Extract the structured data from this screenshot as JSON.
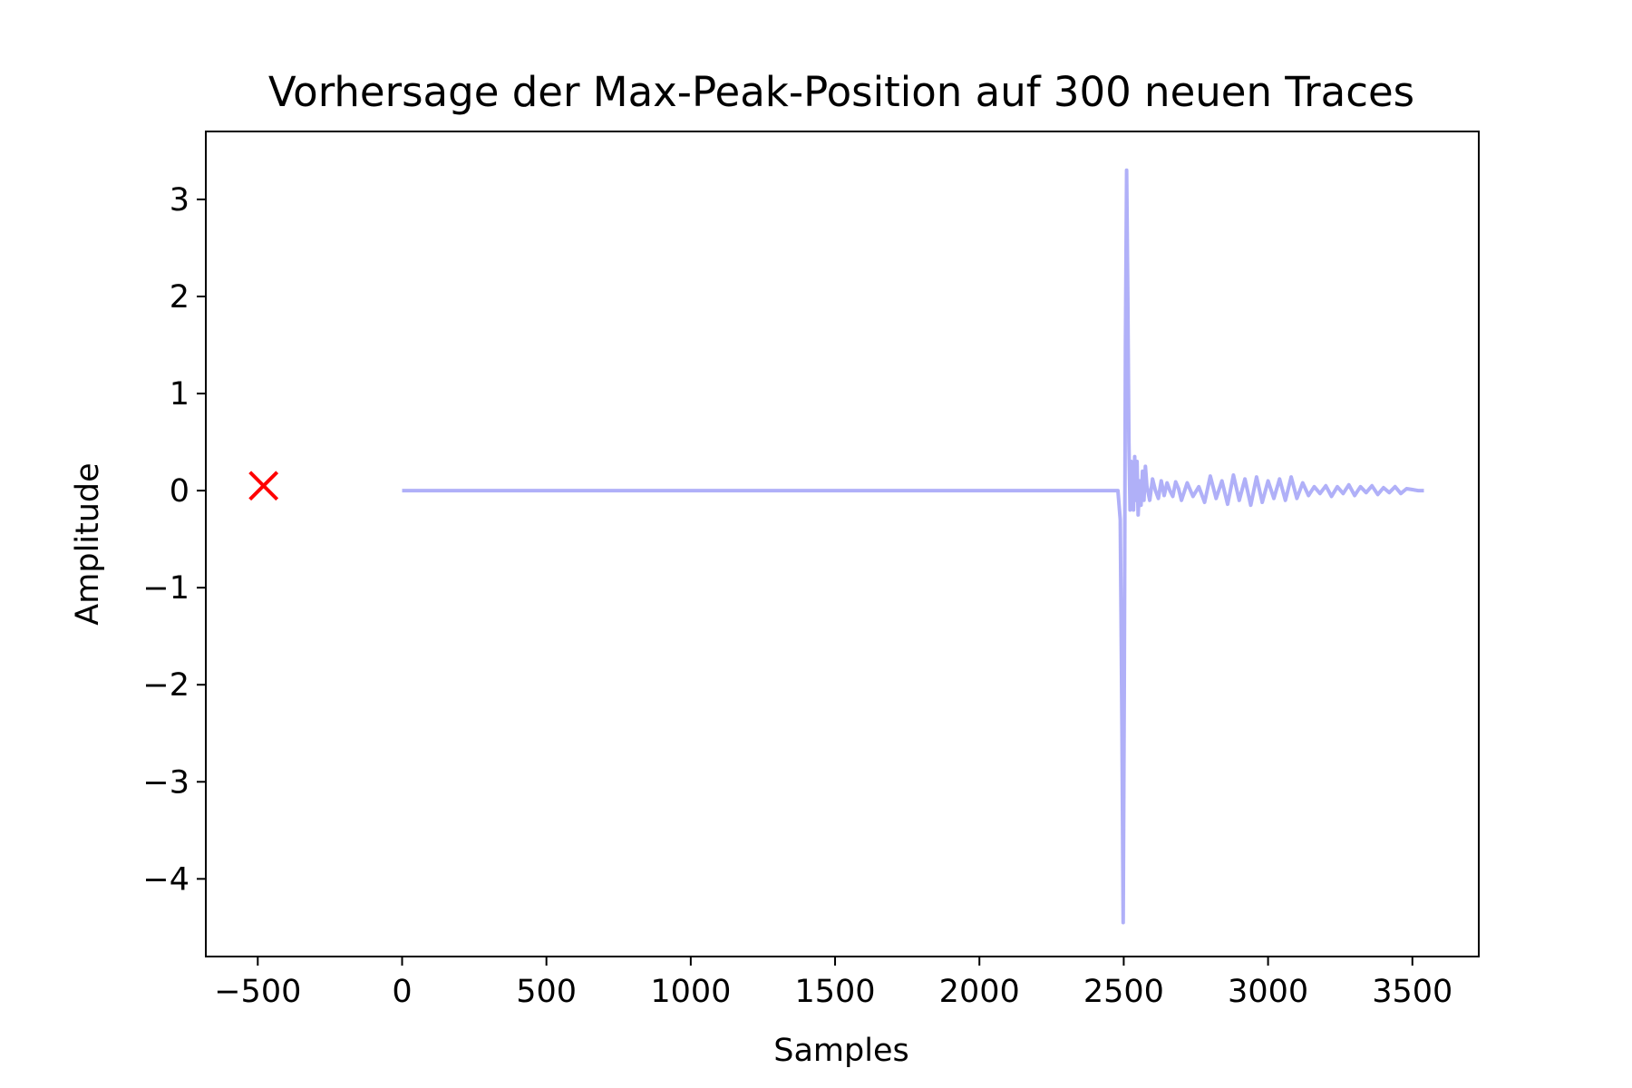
{
  "chart_data": {
    "type": "line",
    "title": "Vorhersage der Max-Peak-Position auf 300 neuen Traces",
    "xlabel": "Samples",
    "ylabel": "Amplitude",
    "xlim": [
      -680,
      3730
    ],
    "ylim": [
      -4.8,
      3.7
    ],
    "xticks": [
      -500,
      0,
      500,
      1000,
      1500,
      2000,
      2500,
      3000,
      3500
    ],
    "xtick_labels": [
      "−500",
      "0",
      "500",
      "1000",
      "1500",
      "2000",
      "2500",
      "3000",
      "3500"
    ],
    "yticks": [
      -4,
      -3,
      -2,
      -1,
      0,
      1,
      2,
      3
    ],
    "ytick_labels": [
      "−4",
      "−3",
      "−2",
      "−1",
      "0",
      "1",
      "2",
      "3"
    ],
    "grid": false,
    "series": [
      {
        "kind": "line",
        "color": "#b0b0f8",
        "x": [
          0,
          2470,
          2480,
          2488,
          2494,
          2498,
          2502,
          2506,
          2510,
          2514,
          2518,
          2522,
          2526,
          2530,
          2534,
          2538,
          2542,
          2546,
          2550,
          2555,
          2560,
          2565,
          2570,
          2575,
          2580,
          2590,
          2600,
          2610,
          2620,
          2630,
          2640,
          2650,
          2660,
          2670,
          2680,
          2690,
          2700,
          2720,
          2740,
          2760,
          2780,
          2800,
          2820,
          2840,
          2860,
          2880,
          2900,
          2920,
          2940,
          2960,
          2980,
          3000,
          3020,
          3040,
          3060,
          3080,
          3100,
          3120,
          3140,
          3160,
          3180,
          3200,
          3220,
          3240,
          3260,
          3280,
          3300,
          3320,
          3340,
          3360,
          3380,
          3400,
          3420,
          3440,
          3460,
          3480,
          3500,
          3520,
          3540
        ],
        "y": [
          0,
          0,
          0,
          -0.3,
          -2.5,
          -4.45,
          -2.0,
          1.5,
          3.3,
          2.0,
          0.5,
          -0.2,
          0.3,
          0.1,
          -0.2,
          0.35,
          -0.1,
          0.3,
          -0.25,
          0.1,
          -0.15,
          0.2,
          -0.1,
          0.25,
          0.05,
          -0.1,
          0.12,
          0.0,
          -0.08,
          0.1,
          -0.05,
          0.08,
          0.0,
          -0.06,
          0.09,
          0.02,
          -0.1,
          0.08,
          -0.06,
          0.04,
          -0.12,
          0.15,
          -0.08,
          0.1,
          -0.14,
          0.16,
          -0.1,
          0.12,
          -0.15,
          0.14,
          -0.12,
          0.1,
          -0.08,
          0.12,
          -0.1,
          0.14,
          -0.08,
          0.08,
          -0.05,
          0.04,
          -0.03,
          0.05,
          -0.06,
          0.04,
          -0.03,
          0.06,
          -0.05,
          0.04,
          -0.02,
          0.05,
          -0.04,
          0.03,
          -0.02,
          0.04,
          -0.03,
          0.02,
          0.01,
          0.0,
          0.0
        ]
      },
      {
        "kind": "marker",
        "marker": "x",
        "color": "#ff0000",
        "x": [
          -480
        ],
        "y": [
          0.05
        ]
      }
    ]
  }
}
